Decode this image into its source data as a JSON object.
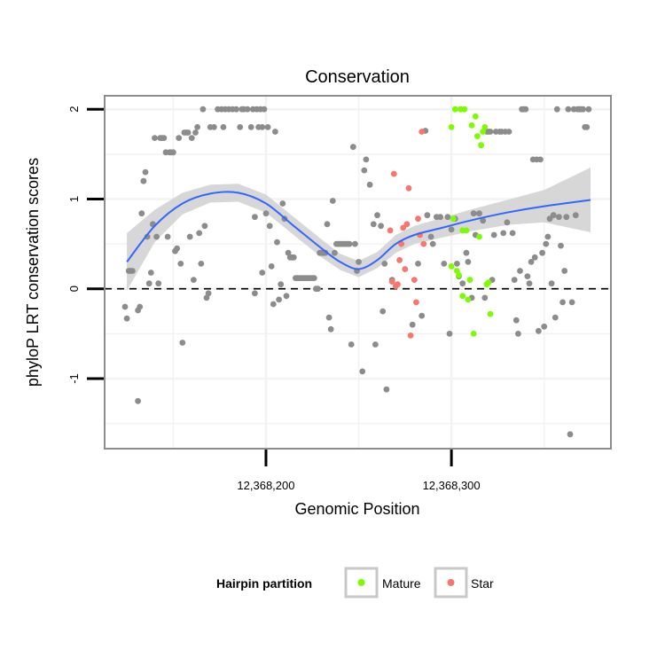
{
  "chart_data": {
    "type": "scatter",
    "title": "Conservation",
    "xlabel": "Genomic Position",
    "ylabel": "phyloP LRT conservation scores",
    "xlim": [
      12368113,
      12368386
    ],
    "ylim": [
      -1.78,
      2.15
    ],
    "x_ticks": [
      {
        "value": 12368200,
        "label": "12,368,200"
      },
      {
        "value": 12368300,
        "label": "12,368,300"
      }
    ],
    "y_ticks": [
      {
        "value": -1,
        "label": "-1"
      },
      {
        "value": 0,
        "label": "0"
      },
      {
        "value": 1,
        "label": "1"
      },
      {
        "value": 2,
        "label": "2"
      }
    ],
    "reference_line": {
      "y": 0,
      "style": "dashed"
    },
    "grid": true,
    "legend": {
      "title": "Hairpin partition",
      "position": "bottom",
      "entries": [
        {
          "label": "Mature",
          "color": "#7CFC00"
        },
        {
          "label": "Star",
          "color": "#F8766D"
        }
      ]
    },
    "colors": {
      "other": "#8C8C8C",
      "Mature": "#7CFC00",
      "Star": "#F8766D",
      "smooth_line": "#3366FF",
      "confidence_band": "#D3D3D3",
      "panel_border": "#8C8C8C",
      "grid": "#F2F2F2"
    },
    "series": [
      {
        "category": "other",
        "points": [
          [
            12368124,
            -0.2
          ],
          [
            12368125,
            -0.33
          ],
          [
            12368126,
            0.2
          ],
          [
            12368127,
            0.2
          ],
          [
            12368128,
            0.2
          ],
          [
            12368131,
            -1.25
          ],
          [
            12368131,
            -0.24
          ],
          [
            12368132,
            -0.2
          ],
          [
            12368133,
            0.84
          ],
          [
            12368134,
            1.2
          ],
          [
            12368135,
            1.3
          ],
          [
            12368136,
            0.58
          ],
          [
            12368137,
            0.06
          ],
          [
            12368138,
            0.18
          ],
          [
            12368139,
            0.72
          ],
          [
            12368140,
            1.68
          ],
          [
            12368141,
            0.58
          ],
          [
            12368142,
            0.06
          ],
          [
            12368143,
            1.68
          ],
          [
            12368144,
            1.68
          ],
          [
            12368145,
            1.68
          ],
          [
            12368146,
            1.52
          ],
          [
            12368147,
            0.58
          ],
          [
            12368148,
            1.52
          ],
          [
            12368149,
            1.52
          ],
          [
            12368150,
            1.52
          ],
          [
            12368151,
            0.42
          ],
          [
            12368152,
            0.45
          ],
          [
            12368153,
            1.68
          ],
          [
            12368154,
            0.28
          ],
          [
            12368155,
            -0.6
          ],
          [
            12368156,
            1.74
          ],
          [
            12368157,
            1.74
          ],
          [
            12368158,
            1.74
          ],
          [
            12368159,
            0.58
          ],
          [
            12368160,
            1.68
          ],
          [
            12368161,
            0.1
          ],
          [
            12368162,
            1.74
          ],
          [
            12368163,
            1.8
          ],
          [
            12368164,
            0.62
          ],
          [
            12368165,
            0.28
          ],
          [
            12368166,
            2.0
          ],
          [
            12368167,
            0.7
          ],
          [
            12368168,
            -0.1
          ],
          [
            12368169,
            -0.05
          ],
          [
            12368170,
            1.8
          ],
          [
            12368172,
            1.8
          ],
          [
            12368174,
            2.0
          ],
          [
            12368176,
            2.0
          ],
          [
            12368177,
            1.8
          ],
          [
            12368178,
            2.0
          ],
          [
            12368180,
            2.0
          ],
          [
            12368182,
            2.0
          ],
          [
            12368184,
            2.0
          ],
          [
            12368186,
            1.8
          ],
          [
            12368187,
            2.0
          ],
          [
            12368188,
            2.0
          ],
          [
            12368190,
            2.0
          ],
          [
            12368192,
            1.8
          ],
          [
            12368193,
            2.0
          ],
          [
            12368194,
            0.8
          ],
          [
            12368194,
            -0.05
          ],
          [
            12368195,
            2.0
          ],
          [
            12368196,
            1.8
          ],
          [
            12368197,
            2.0
          ],
          [
            12368198,
            0.18
          ],
          [
            12368198,
            1.8
          ],
          [
            12368199,
            2.0
          ],
          [
            12368200,
            0.84
          ],
          [
            12368201,
            1.8
          ],
          [
            12368202,
            0.7
          ],
          [
            12368203,
            0.25
          ],
          [
            12368204,
            -0.17
          ],
          [
            12368205,
            1.75
          ],
          [
            12368206,
            0.52
          ],
          [
            12368207,
            -0.12
          ],
          [
            12368208,
            0.05
          ],
          [
            12368209,
            0.95
          ],
          [
            12368210,
            0.78
          ],
          [
            12368211,
            -0.08
          ],
          [
            12368212,
            0.4
          ],
          [
            12368213,
            0.35
          ],
          [
            12368214,
            0.35
          ],
          [
            12368215,
            0.35
          ],
          [
            12368216,
            0.12
          ],
          [
            12368217,
            0.12
          ],
          [
            12368218,
            0.12
          ],
          [
            12368219,
            0.12
          ],
          [
            12368220,
            0.12
          ],
          [
            12368221,
            0.12
          ],
          [
            12368222,
            0.12
          ],
          [
            12368223,
            0.12
          ],
          [
            12368224,
            0.12
          ],
          [
            12368225,
            0.12
          ],
          [
            12368226,
            0.12
          ],
          [
            12368227,
            0.0
          ],
          [
            12368228,
            0.0
          ],
          [
            12368229,
            0.4
          ],
          [
            12368230,
            0.4
          ],
          [
            12368231,
            0.4
          ],
          [
            12368232,
            0.4
          ],
          [
            12368233,
            0.72
          ],
          [
            12368234,
            -0.32
          ],
          [
            12368235,
            -0.45
          ],
          [
            12368236,
            0.98
          ],
          [
            12368237,
            0.4
          ],
          [
            12368238,
            0.5
          ],
          [
            12368239,
            0.5
          ],
          [
            12368240,
            0.5
          ],
          [
            12368241,
            0.5
          ],
          [
            12368242,
            0.5
          ],
          [
            12368243,
            0.5
          ],
          [
            12368244,
            0.5
          ],
          [
            12368245,
            0.5
          ],
          [
            12368246,
            -0.62
          ],
          [
            12368247,
            1.58
          ],
          [
            12368248,
            0.5
          ],
          [
            12368249,
            0.2
          ],
          [
            12368250,
            0.3
          ],
          [
            12368252,
            -0.92
          ],
          [
            12368253,
            1.32
          ],
          [
            12368254,
            1.44
          ],
          [
            12368256,
            1.16
          ],
          [
            12368258,
            0.72
          ],
          [
            12368259,
            -0.62
          ],
          [
            12368260,
            0.82
          ],
          [
            12368262,
            0.7
          ],
          [
            12368263,
            -0.25
          ],
          [
            12368264,
            0.28
          ],
          [
            12368265,
            -1.12
          ],
          [
            12368268,
            0.1
          ],
          [
            12368279,
            -0.4
          ],
          [
            12368282,
            0.28
          ],
          [
            12368284,
            -0.3
          ],
          [
            12368286,
            1.76
          ],
          [
            12368287,
            0.82
          ],
          [
            12368289,
            0.58
          ],
          [
            12368290,
            0.5
          ],
          [
            12368292,
            0.8
          ],
          [
            12368294,
            0.8
          ],
          [
            12368296,
            0.28
          ],
          [
            12368298,
            0.8
          ],
          [
            12368299,
            -0.5
          ],
          [
            12368300,
            0.66
          ],
          [
            12368302,
            0.78
          ],
          [
            12368303,
            0.28
          ],
          [
            12368304,
            0.14
          ],
          [
            12368306,
            0.06
          ],
          [
            12368308,
            0.4
          ],
          [
            12368309,
            0.3
          ],
          [
            12368311,
            -0.1
          ],
          [
            12368312,
            0.84
          ],
          [
            12368313,
            0.6
          ],
          [
            12368315,
            0.84
          ],
          [
            12368317,
            0.76
          ],
          [
            12368318,
            -0.1
          ],
          [
            12368319,
            1.75
          ],
          [
            12368320,
            1.75
          ],
          [
            12368321,
            1.75
          ],
          [
            12368322,
            0.1
          ],
          [
            12368323,
            0.6
          ],
          [
            12368324,
            1.75
          ],
          [
            12368326,
            1.75
          ],
          [
            12368327,
            1.75
          ],
          [
            12368328,
            0.62
          ],
          [
            12368329,
            1.75
          ],
          [
            12368330,
            0.74
          ],
          [
            12368331,
            1.75
          ],
          [
            12368333,
            0.62
          ],
          [
            12368334,
            0.1
          ],
          [
            12368335,
            -0.35
          ],
          [
            12368336,
            -0.5
          ],
          [
            12368337,
            0.2
          ],
          [
            12368338,
            2.0
          ],
          [
            12368339,
            2.0
          ],
          [
            12368340,
            2.0
          ],
          [
            12368341,
            0.14
          ],
          [
            12368342,
            0.06
          ],
          [
            12368343,
            0.3
          ],
          [
            12368344,
            1.44
          ],
          [
            12368345,
            0.35
          ],
          [
            12368346,
            1.44
          ],
          [
            12368347,
            -0.47
          ],
          [
            12368348,
            1.44
          ],
          [
            12368349,
            0.4
          ],
          [
            12368350,
            -0.42
          ],
          [
            12368351,
            0.5
          ],
          [
            12368352,
            0.58
          ],
          [
            12368353,
            0.78
          ],
          [
            12368354,
            0.06
          ],
          [
            12368355,
            0.82
          ],
          [
            12368356,
            -0.32
          ],
          [
            12368357,
            2.0
          ],
          [
            12368358,
            0.8
          ],
          [
            12368359,
            0.48
          ],
          [
            12368360,
            -0.15
          ],
          [
            12368361,
            0.2
          ],
          [
            12368362,
            0.8
          ],
          [
            12368363,
            2.0
          ],
          [
            12368364,
            -1.62
          ],
          [
            12368365,
            -0.15
          ],
          [
            12368366,
            2.0
          ],
          [
            12368367,
            0.82
          ],
          [
            12368368,
            2.0
          ],
          [
            12368369,
            2.0
          ],
          [
            12368370,
            2.0
          ],
          [
            12368371,
            2.0
          ],
          [
            12368372,
            1.8
          ],
          [
            12368373,
            1.8
          ],
          [
            12368374,
            2.0
          ]
        ]
      },
      {
        "name": "Mature",
        "points": [
          [
            12368300,
            1.8
          ],
          [
            12368300,
            0.25
          ],
          [
            12368301,
            0.78
          ],
          [
            12368302,
            2.0
          ],
          [
            12368303,
            0.2
          ],
          [
            12368304,
            0.15
          ],
          [
            12368305,
            2.0
          ],
          [
            12368306,
            0.65
          ],
          [
            12368306,
            -0.08
          ],
          [
            12368307,
            2.0
          ],
          [
            12368308,
            0.65
          ],
          [
            12368309,
            -0.12
          ],
          [
            12368310,
            0.1
          ],
          [
            12368311,
            1.82
          ],
          [
            12368312,
            -0.5
          ],
          [
            12368313,
            1.92
          ],
          [
            12368314,
            1.7
          ],
          [
            12368315,
            0.58
          ],
          [
            12368316,
            1.6
          ],
          [
            12368317,
            1.75
          ],
          [
            12368318,
            1.8
          ],
          [
            12368319,
            0.05
          ],
          [
            12368320,
            0.07
          ],
          [
            12368321,
            -0.28
          ]
        ]
      },
      {
        "name": "Star",
        "points": [
          [
            12368267,
            0.65
          ],
          [
            12368268,
            0.08
          ],
          [
            12368269,
            1.28
          ],
          [
            12368270,
            0.03
          ],
          [
            12368271,
            0.05
          ],
          [
            12368272,
            0.32
          ],
          [
            12368273,
            0.5
          ],
          [
            12368274,
            0.68
          ],
          [
            12368275,
            0.22
          ],
          [
            12368276,
            0.72
          ],
          [
            12368277,
            1.12
          ],
          [
            12368278,
            -0.52
          ],
          [
            12368280,
            0.1
          ],
          [
            12368281,
            -0.15
          ],
          [
            12368282,
            0.78
          ],
          [
            12368283,
            0.6
          ],
          [
            12368284,
            1.75
          ],
          [
            12368285,
            0.5
          ]
        ]
      }
    ],
    "smooth_fit": {
      "x": [
        12368125,
        12368140,
        12368155,
        12368170,
        12368185,
        12368200,
        12368215,
        12368230,
        12368240,
        12368250,
        12368260,
        12368270,
        12368280,
        12368295,
        12368310,
        12368330,
        12368350,
        12368375
      ],
      "y": [
        0.3,
        0.7,
        0.95,
        1.06,
        1.07,
        0.95,
        0.7,
        0.45,
        0.3,
        0.22,
        0.32,
        0.5,
        0.6,
        0.68,
        0.76,
        0.85,
        0.92,
        0.99
      ],
      "se": [
        0.32,
        0.18,
        0.12,
        0.1,
        0.1,
        0.1,
        0.1,
        0.1,
        0.09,
        0.09,
        0.09,
        0.1,
        0.1,
        0.11,
        0.12,
        0.14,
        0.18,
        0.36
      ]
    }
  }
}
